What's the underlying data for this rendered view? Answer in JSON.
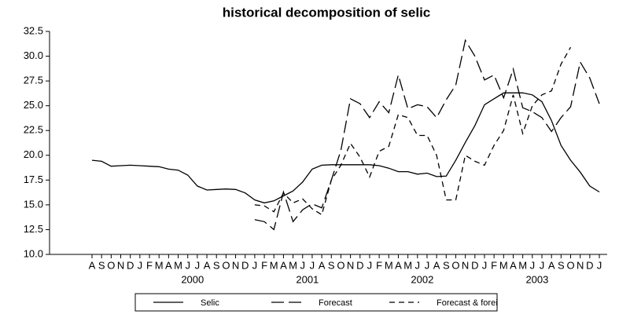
{
  "chart_data": {
    "type": "line",
    "title": "historical decomposition of selic",
    "categories": [
      "A",
      "S",
      "O",
      "N",
      "D",
      "J",
      "F",
      "M",
      "A",
      "M",
      "J",
      "J",
      "A",
      "S",
      "O",
      "N",
      "D",
      "J",
      "F",
      "M",
      "A",
      "M",
      "J",
      "J",
      "A",
      "S",
      "O",
      "N",
      "D",
      "J",
      "F",
      "M",
      "A",
      "M",
      "J",
      "J",
      "A",
      "S",
      "O",
      "N",
      "D",
      "J",
      "F",
      "M",
      "A",
      "M",
      "J",
      "J",
      "A",
      "S",
      "O",
      "N",
      "D",
      "J"
    ],
    "years": [
      "2000",
      "2001",
      "2002",
      "2003"
    ],
    "ylim": [
      10,
      32.5
    ],
    "yticks": [
      {
        "value": 10,
        "label": "10.0"
      },
      12.5,
      {
        "value": 15,
        "label": "15.0"
      },
      17.5,
      {
        "value": 20,
        "label": "20.0"
      },
      22.5,
      {
        "value": 25,
        "label": "25.0"
      },
      27.5,
      {
        "value": 30,
        "label": "30.0"
      },
      32.5
    ],
    "series": [
      {
        "name": "Selic",
        "color": "#000000",
        "line_style": "solid",
        "values": [
          19.5,
          19.4,
          18.9,
          18.95,
          19.0,
          18.95,
          18.9,
          18.85,
          18.6,
          18.5,
          18.0,
          16.9,
          16.5,
          16.55,
          16.6,
          16.55,
          16.2,
          15.5,
          15.2,
          15.4,
          15.9,
          16.4,
          17.3,
          18.6,
          19.0,
          19.05,
          19.05,
          19.05,
          19.05,
          19.05,
          18.95,
          18.7,
          18.35,
          18.35,
          18.1,
          18.2,
          17.85,
          17.9,
          19.5,
          21.3,
          23.0,
          25.1,
          25.7,
          26.3,
          26.3,
          26.3,
          26.1,
          25.4,
          23.5,
          21.0,
          19.5,
          18.3,
          16.9,
          16.3
        ]
      },
      {
        "name": "Forecast",
        "color": "#000000",
        "line_style": "long-dash",
        "values": [
          null,
          null,
          null,
          null,
          null,
          null,
          null,
          null,
          null,
          null,
          null,
          null,
          null,
          null,
          null,
          null,
          null,
          13.5,
          13.3,
          12.5,
          16.3,
          13.3,
          14.5,
          15.1,
          14.7,
          17.5,
          20.5,
          25.7,
          25.2,
          23.8,
          25.4,
          24.3,
          28.1,
          24.7,
          25.1,
          24.9,
          23.8,
          25.6,
          27.1,
          31.6,
          30.0,
          27.6,
          28.1,
          25.8,
          28.7,
          24.8,
          24.4,
          23.8,
          22.4,
          23.8,
          24.9,
          29.4,
          27.8,
          25.2
        ]
      },
      {
        "name": "Forecast & forei",
        "color": "#000000",
        "line_style": "short-dash",
        "values": [
          null,
          null,
          null,
          null,
          null,
          null,
          null,
          null,
          null,
          null,
          null,
          null,
          null,
          null,
          null,
          null,
          null,
          15.0,
          14.9,
          14.3,
          16.2,
          15.2,
          15.6,
          14.6,
          14.0,
          17.5,
          19.0,
          21.2,
          19.8,
          17.8,
          20.4,
          20.9,
          24.1,
          23.8,
          22.0,
          22.0,
          20.0,
          15.5,
          15.5,
          20.0,
          19.4,
          19.0,
          21.0,
          22.5,
          26.1,
          22.2,
          25.0,
          26.1,
          26.5,
          29.2,
          30.9,
          null,
          null,
          null
        ]
      }
    ]
  }
}
